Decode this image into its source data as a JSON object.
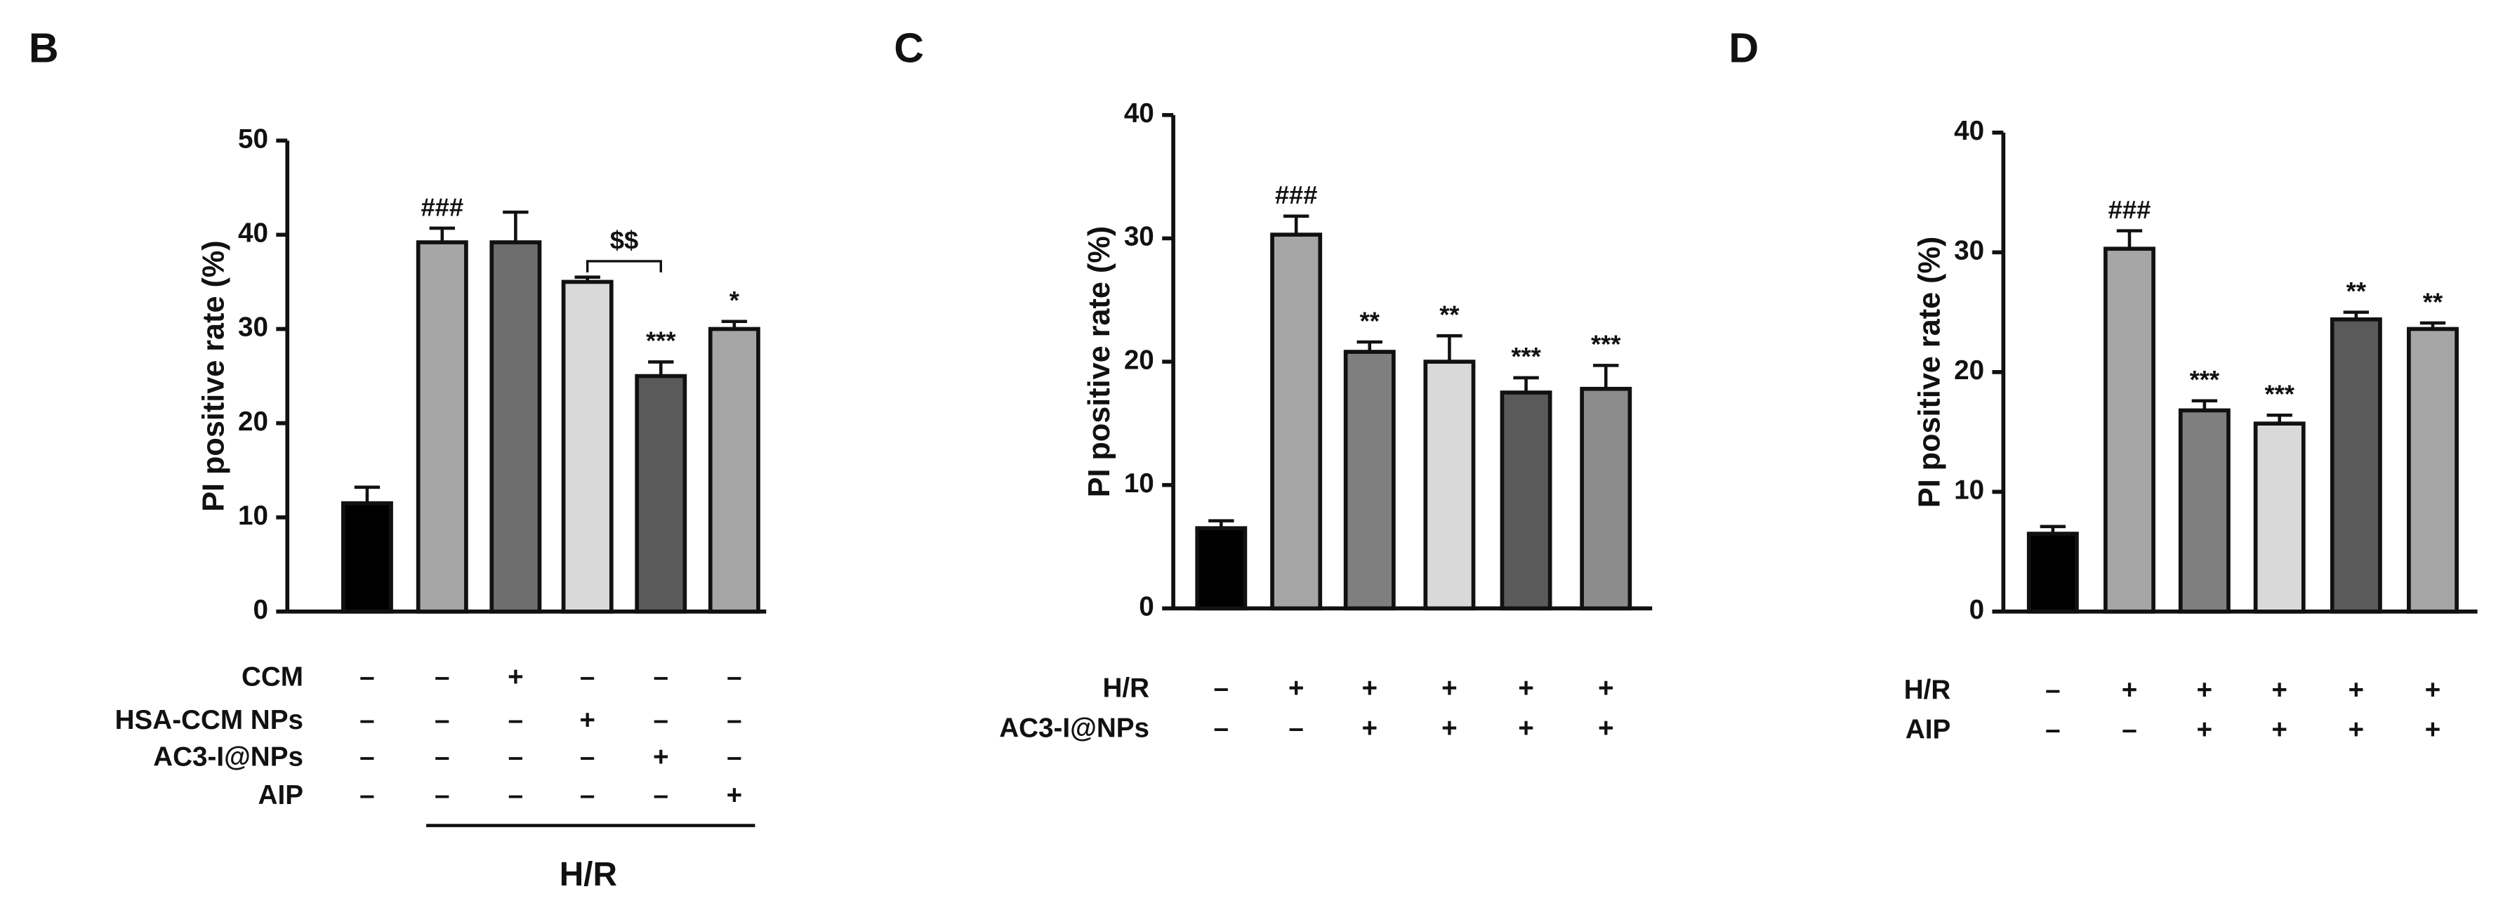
{
  "chart_data": [
    {
      "type": "bar",
      "panel": "B",
      "ylabel": "PI positive rate (%)",
      "ylim": [
        0,
        50
      ],
      "yticks": [
        0,
        10,
        20,
        30,
        40,
        50
      ],
      "values": [
        11.5,
        39.2,
        39.2,
        35.0,
        25.0,
        30.0
      ],
      "errors": [
        1.7,
        1.5,
        3.2,
        0.5,
        1.5,
        0.8
      ],
      "colors": [
        "#000000",
        "#a6a6a6",
        "#6e6e6e",
        "#d9d9d9",
        "#5a5a5a",
        "#a6a6a6"
      ],
      "annotations": [
        null,
        "###",
        null,
        null,
        "***",
        "*"
      ],
      "significance_bracket": "$$",
      "conditions": [
        {
          "name": "CCM",
          "signs": [
            "–",
            "–",
            "+",
            "–",
            "–",
            "–"
          ]
        },
        {
          "name": "HSA-CCM NPs",
          "signs": [
            "–",
            "–",
            "–",
            "+",
            "–",
            "–"
          ]
        },
        {
          "name": "AC3-I@NPs",
          "signs": [
            "–",
            "–",
            "–",
            "–",
            "+",
            "–"
          ]
        },
        {
          "name": "AIP",
          "signs": [
            "–",
            "–",
            "–",
            "–",
            "–",
            "+"
          ]
        }
      ],
      "group_label": "H/R"
    },
    {
      "type": "bar",
      "panel": "C",
      "ylabel": "PI positive rate (%)",
      "ylim": [
        0,
        40
      ],
      "yticks": [
        0,
        10,
        20,
        30,
        40
      ],
      "values": [
        6.5,
        30.3,
        20.8,
        20.0,
        17.5,
        17.8
      ],
      "errors": [
        0.6,
        1.5,
        0.8,
        2.1,
        1.2,
        1.9
      ],
      "colors": [
        "#000000",
        "#a6a6a6",
        "#7f7f7f",
        "#d9d9d9",
        "#5a5a5a",
        "#8c8c8c"
      ],
      "annotations": [
        null,
        "###",
        "**",
        "**",
        "***",
        "***"
      ],
      "conditions": [
        {
          "name": "H/R",
          "signs": [
            "–",
            "+",
            "+",
            "+",
            "+",
            "+"
          ]
        },
        {
          "name": "AC3-I@NPs",
          "signs": [
            "–",
            "–",
            "+",
            "+",
            "+",
            "+"
          ]
        }
      ]
    },
    {
      "type": "bar",
      "panel": "D",
      "ylabel": "PI positive rate (%)",
      "ylim": [
        0,
        40
      ],
      "yticks": [
        0,
        10,
        20,
        30,
        40
      ],
      "values": [
        6.5,
        30.3,
        16.8,
        15.7,
        24.4,
        23.6
      ],
      "errors": [
        0.6,
        1.5,
        0.8,
        0.7,
        0.6,
        0.5
      ],
      "colors": [
        "#000000",
        "#a6a6a6",
        "#7f7f7f",
        "#d9d9d9",
        "#5a5a5a",
        "#a6a6a6"
      ],
      "annotations": [
        null,
        "###",
        "***",
        "***",
        "**",
        "**"
      ],
      "conditions": [
        {
          "name": "H/R",
          "signs": [
            "–",
            "+",
            "+",
            "+",
            "+",
            "+"
          ]
        },
        {
          "name": "AIP",
          "signs": [
            "–",
            "–",
            "+",
            "+",
            "+",
            "+"
          ]
        }
      ]
    }
  ]
}
